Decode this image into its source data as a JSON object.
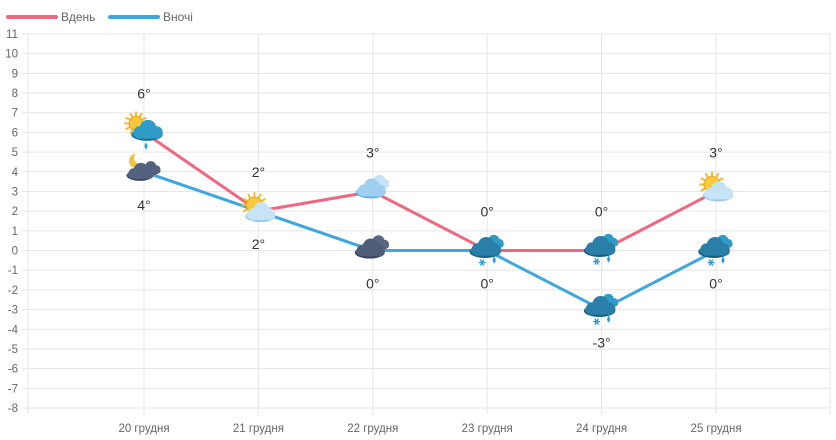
{
  "chart_data": {
    "type": "line",
    "categories": [
      "20 грудня",
      "21 грудня",
      "22 грудня",
      "23 грудня",
      "24 грудня",
      "25 грудня"
    ],
    "series": [
      {
        "name": "Вдень",
        "color": "#f0677f",
        "values": [
          6,
          2,
          3,
          0,
          0,
          3
        ],
        "labels": [
          "6°",
          "2°",
          "3°",
          "0°",
          "0°",
          "3°"
        ],
        "icons": [
          "sun-cloud-rain-icon",
          "sun-cloud-icon",
          "cloud-icon",
          "cloud-snow-icon",
          "cloud-snow-icon",
          "sun-cloud-icon"
        ]
      },
      {
        "name": "Вночі",
        "color": "#3ea6e0",
        "values": [
          4,
          2,
          0,
          0,
          -3,
          0
        ],
        "labels": [
          "4°",
          "2°",
          "0°",
          "0°",
          "-3°",
          "0°"
        ],
        "icons": [
          "moon-cloud-icon",
          "sun-cloud-icon",
          "dark-cloud-icon",
          "cloud-snow-icon",
          "cloud-snow-icon",
          "cloud-snow-icon"
        ]
      }
    ],
    "ylim": [
      -8,
      11
    ],
    "yticks": [
      "11",
      "10",
      "9",
      "8",
      "7",
      "6",
      "5",
      "4",
      "3",
      "2",
      "1",
      "0",
      "-1",
      "-2",
      "-3",
      "-4",
      "-5",
      "-6",
      "-7",
      "-8"
    ],
    "grid": true,
    "legend": "top-left"
  }
}
